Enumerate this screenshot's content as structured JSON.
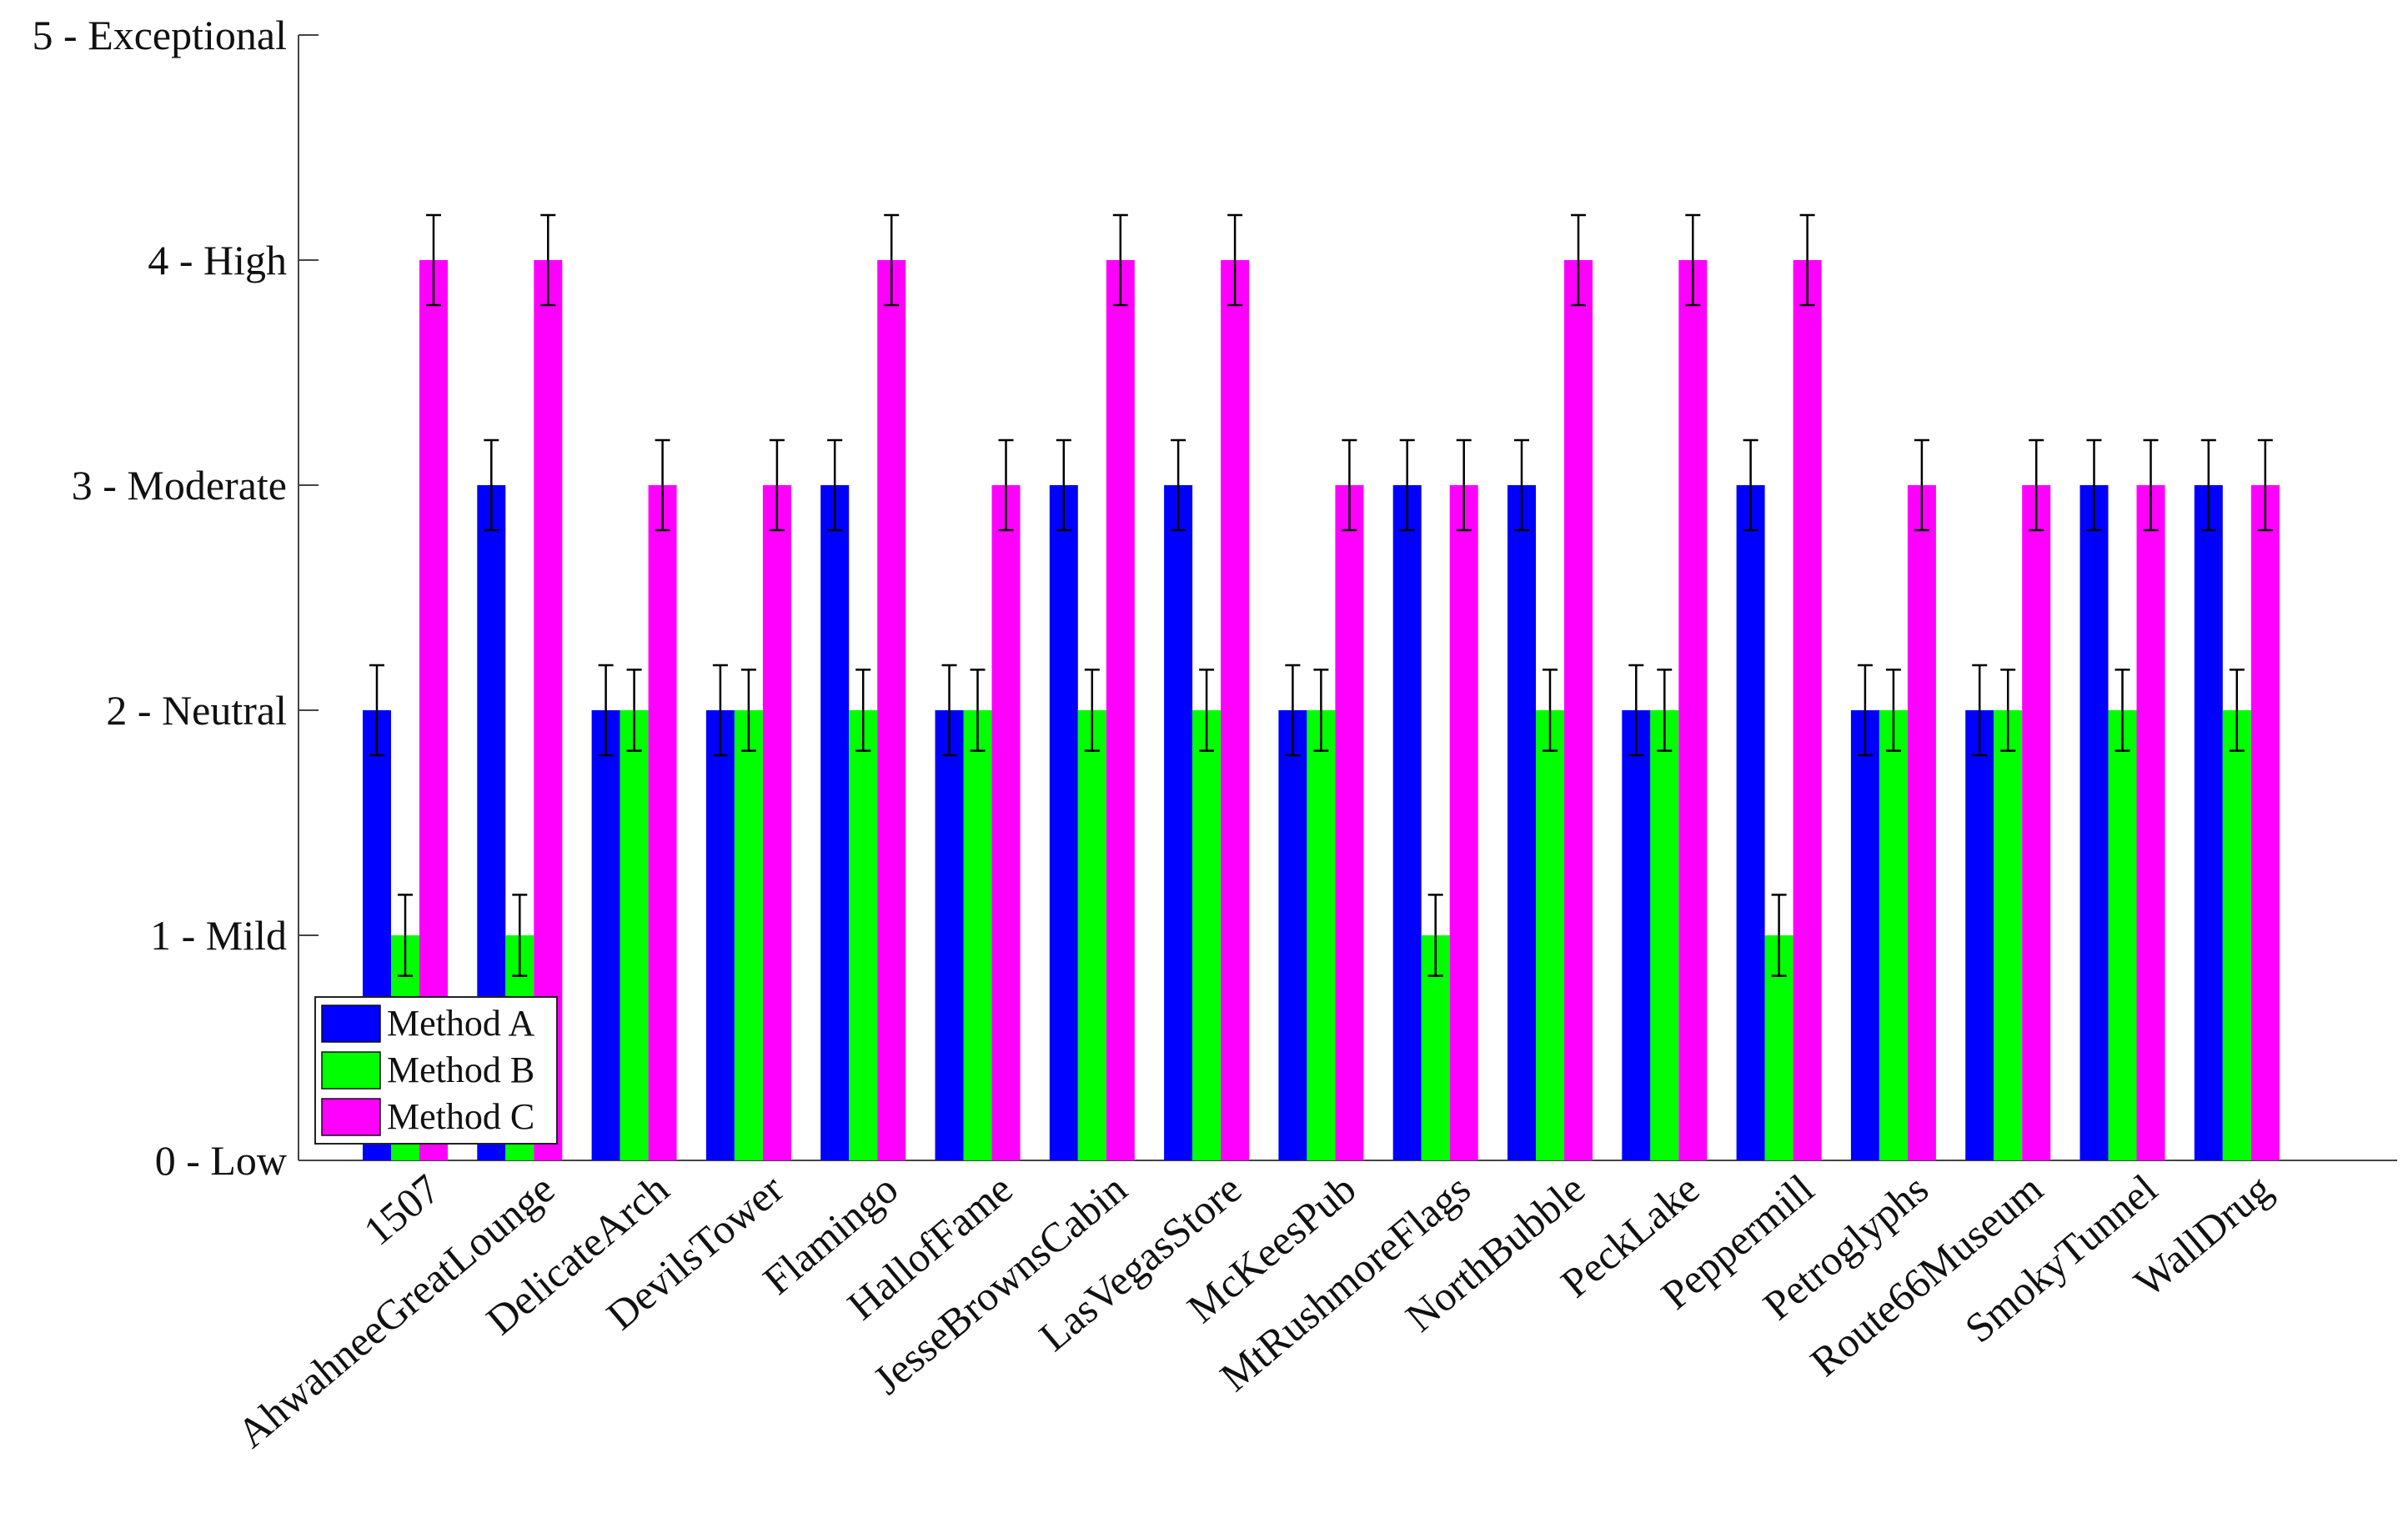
{
  "chart_data": {
    "type": "bar",
    "title": "",
    "xlabel": "",
    "ylabel": "",
    "ylim": [
      0,
      5
    ],
    "yticks": [
      0,
      1,
      2,
      3,
      4,
      5
    ],
    "ytick_labels": [
      "0 - Low",
      "1 - Mild",
      "2 - Neutral",
      "3 - Moderate",
      "4 - High",
      "5 - Exceptional"
    ],
    "categories": [
      "1507",
      "AhwahneeGreatLounge",
      "DelicateArch",
      "DevilsTower",
      "Flamingo",
      "HallofFame",
      "JesseBrownsCabin",
      "LasVegasStore",
      "McKeesPub",
      "MtRushmoreFlags",
      "NorthBubble",
      "PeckLake",
      "Peppermill",
      "Petroglyphs",
      "Route66Museum",
      "SmokyTunnel",
      "WallDrug"
    ],
    "series": [
      {
        "name": "Method A",
        "color": "#0000ff",
        "values": [
          2,
          3,
          2,
          2,
          3,
          2,
          3,
          3,
          2,
          3,
          3,
          2,
          3,
          2,
          2,
          3,
          3
        ],
        "errors": [
          0.2,
          0.2,
          0.2,
          0.2,
          0.2,
          0.2,
          0.2,
          0.2,
          0.2,
          0.2,
          0.2,
          0.2,
          0.2,
          0.2,
          0.2,
          0.2,
          0.2
        ]
      },
      {
        "name": "Method B",
        "color": "#00ff00",
        "values": [
          1,
          1,
          2,
          2,
          2,
          2,
          2,
          2,
          2,
          1,
          2,
          2,
          1,
          2,
          2,
          2,
          2
        ],
        "errors": [
          0.18,
          0.18,
          0.18,
          0.18,
          0.18,
          0.18,
          0.18,
          0.18,
          0.18,
          0.18,
          0.18,
          0.18,
          0.18,
          0.18,
          0.18,
          0.18,
          0.18
        ]
      },
      {
        "name": "Method C",
        "color": "#ff00ff",
        "values": [
          4,
          4,
          3,
          3,
          4,
          3,
          4,
          4,
          3,
          3,
          4,
          4,
          4,
          3,
          3,
          3,
          3
        ],
        "errors": [
          0.2,
          0.2,
          0.2,
          0.2,
          0.2,
          0.2,
          0.2,
          0.2,
          0.2,
          0.2,
          0.2,
          0.2,
          0.2,
          0.2,
          0.2,
          0.2,
          0.2
        ]
      }
    ],
    "legend": {
      "placement": "bottom-left",
      "entries": [
        "Method A",
        "Method B",
        "Method C"
      ]
    },
    "grid": false
  }
}
